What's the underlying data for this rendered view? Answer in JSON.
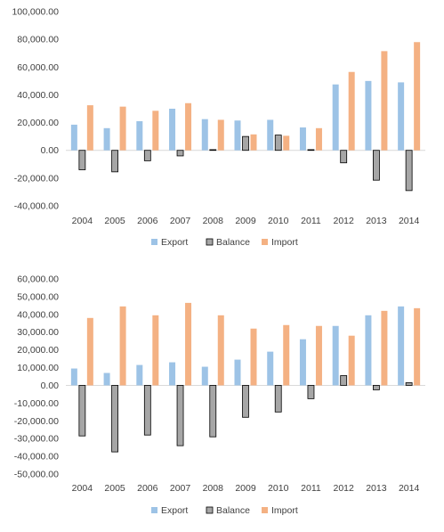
{
  "colors": {
    "export": "#9dc3e6",
    "balance": "#a6a6a6",
    "balance_stroke": "#000000",
    "import": "#f4b183",
    "zero_line": "#d9d9d9",
    "text": "#404040"
  },
  "legend": {
    "export": "Export",
    "balance": "Balance",
    "import": "Import"
  },
  "chart_data": [
    {
      "type": "bar",
      "categories": [
        "2004",
        "2005",
        "2006",
        "2007",
        "2008",
        "2009",
        "2010",
        "2011",
        "2012",
        "2013",
        "2014"
      ],
      "ylim": [
        -40000,
        100000
      ],
      "yticks": [
        -40000,
        -20000,
        0,
        20000,
        40000,
        60000,
        80000,
        100000
      ],
      "ytick_labels": [
        "-40,000.00",
        "-20,000.00",
        "0.00",
        "20,000.00",
        "40,000.00",
        "60,000.00",
        "80,000.00",
        "100,000.00"
      ],
      "grid": false,
      "legend_position": "bottom",
      "series": [
        {
          "name": "Export",
          "values": [
            18500,
            16000,
            21000,
            30000,
            22500,
            21500,
            22000,
            16500,
            47500,
            50000,
            49000
          ]
        },
        {
          "name": "Balance",
          "values": [
            -14000,
            -15500,
            -7500,
            -4000,
            500,
            10000,
            11000,
            500,
            -9000,
            -21500,
            -29000
          ]
        },
        {
          "name": "Import",
          "values": [
            32500,
            31500,
            28500,
            34000,
            22000,
            11500,
            10500,
            16000,
            56500,
            71500,
            78000
          ]
        }
      ]
    },
    {
      "type": "bar",
      "categories": [
        "2004",
        "2005",
        "2006",
        "2007",
        "2008",
        "2009",
        "2010",
        "2011",
        "2012",
        "2013",
        "2014"
      ],
      "ylim": [
        -50000,
        60000
      ],
      "yticks": [
        -50000,
        -40000,
        -30000,
        -20000,
        -10000,
        0,
        10000,
        20000,
        30000,
        40000,
        50000,
        60000
      ],
      "ytick_labels": [
        "-50,000.00",
        "-40,000.00",
        "-30,000.00",
        "-20,000.00",
        "-10,000.00",
        "0.00",
        "10,000.00",
        "20,000.00",
        "30,000.00",
        "40,000.00",
        "50,000.00",
        "60,000.00"
      ],
      "grid": false,
      "legend_position": "bottom",
      "series": [
        {
          "name": "Export",
          "values": [
            9500,
            7000,
            11500,
            13000,
            10500,
            14500,
            19000,
            26000,
            33500,
            39500,
            44500
          ]
        },
        {
          "name": "Balance",
          "values": [
            -28500,
            -37500,
            -28000,
            -34000,
            -29000,
            -18000,
            -15000,
            -7500,
            5500,
            -2500,
            1500
          ]
        },
        {
          "name": "Import",
          "values": [
            38000,
            44500,
            39500,
            46500,
            39500,
            32000,
            34000,
            33500,
            28000,
            42000,
            43500
          ]
        }
      ]
    }
  ]
}
